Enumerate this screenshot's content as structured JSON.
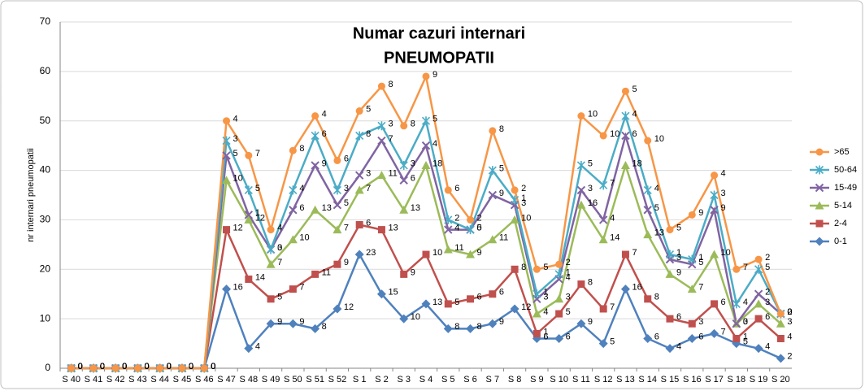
{
  "chart_data": {
    "type": "line",
    "stacked": true,
    "title": "Numar cazuri internari",
    "subtitle": "PNEUMOPATII",
    "y_label": "nr internari pneumopatii",
    "categories": [
      "S 40",
      "S 41",
      "S 42",
      "S 43",
      "S 44",
      "S 45",
      "S 46",
      "S 47",
      "S 48",
      "S 49",
      "S 50",
      "S 51",
      "S 52",
      "S 1",
      "S 2",
      "S 3",
      "S 4",
      "S 5",
      "S 6",
      "S 7",
      "S 8",
      "S 9",
      "S 10",
      "S 11",
      "S 12",
      "S 13",
      "S 14",
      "S 15",
      "S 16",
      "S 17",
      "S 18",
      "S 19",
      "S 20"
    ],
    "series": [
      {
        "name": "0-1",
        "color": "#4f81bd",
        "marker": "diamond",
        "values": [
          0,
          0,
          0,
          0,
          0,
          0,
          0,
          16,
          4,
          9,
          9,
          8,
          12,
          23,
          15,
          10,
          13,
          8,
          8,
          9,
          12,
          6,
          6,
          9,
          5,
          16,
          6,
          4,
          6,
          7,
          5,
          4,
          2
        ]
      },
      {
        "name": "2-4",
        "color": "#c0504d",
        "marker": "square",
        "values": [
          0,
          0,
          0,
          0,
          0,
          0,
          0,
          12,
          14,
          5,
          7,
          11,
          9,
          6,
          13,
          9,
          10,
          5,
          6,
          6,
          8,
          1,
          5,
          8,
          7,
          7,
          8,
          6,
          3,
          6,
          1,
          6,
          4
        ]
      },
      {
        "name": "5-14",
        "color": "#9bbb59",
        "marker": "triangle",
        "values": [
          0,
          0,
          0,
          0,
          0,
          0,
          0,
          10,
          12,
          7,
          10,
          13,
          7,
          7,
          11,
          13,
          18,
          11,
          9,
          11,
          10,
          4,
          3,
          16,
          14,
          18,
          13,
          9,
          7,
          10,
          3,
          3,
          3
        ]
      },
      {
        "name": "15-49",
        "color": "#8064a2",
        "marker": "x",
        "values": [
          0,
          0,
          0,
          0,
          0,
          0,
          0,
          5,
          1,
          3,
          6,
          9,
          5,
          3,
          7,
          6,
          4,
          4,
          5,
          9,
          3,
          3,
          4,
          3,
          4,
          6,
          5,
          3,
          5,
          9,
          0,
          2,
          2
        ]
      },
      {
        "name": "50-64",
        "color": "#4bacc6",
        "marker": "star",
        "values": [
          0,
          0,
          0,
          0,
          0,
          0,
          0,
          3,
          5,
          0,
          4,
          6,
          3,
          8,
          3,
          3,
          5,
          2,
          0,
          5,
          1,
          1,
          1,
          5,
          7,
          4,
          4,
          1,
          1,
          3,
          4,
          5,
          0
        ]
      },
      {
        "name": ">65",
        "color": "#f79646",
        "marker": "circle",
        "values": [
          0,
          0,
          0,
          0,
          0,
          0,
          0,
          4,
          7,
          4,
          8,
          4,
          6,
          5,
          8,
          8,
          9,
          6,
          2,
          8,
          2,
          5,
          2,
          10,
          10,
          5,
          10,
          5,
          9,
          4,
          7,
          2,
          0
        ]
      }
    ],
    "ylim": [
      0,
      70
    ],
    "yticks": [
      0,
      10,
      20,
      30,
      40,
      50,
      60,
      70
    ],
    "grid": true,
    "legend": "right"
  }
}
